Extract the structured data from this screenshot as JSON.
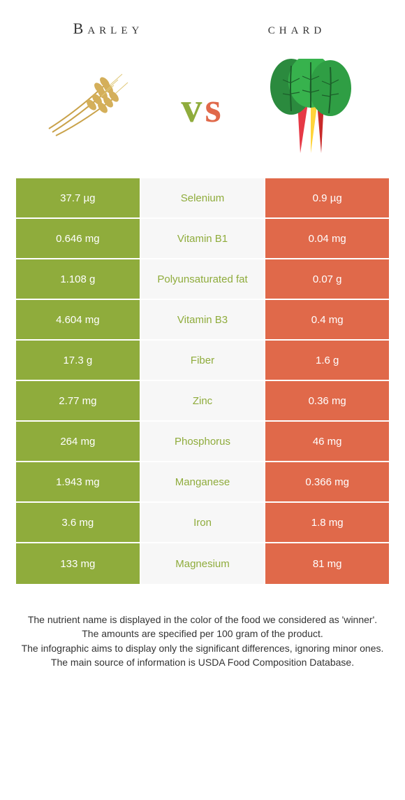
{
  "left_food": "Barley",
  "right_food": "chard",
  "vs_left_color": "#8fac3c",
  "vs_right_color": "#e0694a",
  "colors": {
    "left": "#8fac3c",
    "right": "#e0694a",
    "middle_bg": "#f7f7f7"
  },
  "rows": [
    {
      "left": "37.7 µg",
      "label": "Selenium",
      "right": "0.9 µg",
      "winner": "left"
    },
    {
      "left": "0.646 mg",
      "label": "Vitamin B1",
      "right": "0.04 mg",
      "winner": "left"
    },
    {
      "left": "1.108 g",
      "label": "Polyunsaturated fat",
      "right": "0.07 g",
      "winner": "left"
    },
    {
      "left": "4.604 mg",
      "label": "Vitamin B3",
      "right": "0.4 mg",
      "winner": "left"
    },
    {
      "left": "17.3 g",
      "label": "Fiber",
      "right": "1.6 g",
      "winner": "left"
    },
    {
      "left": "2.77 mg",
      "label": "Zinc",
      "right": "0.36 mg",
      "winner": "left"
    },
    {
      "left": "264 mg",
      "label": "Phosphorus",
      "right": "46 mg",
      "winner": "left"
    },
    {
      "left": "1.943 mg",
      "label": "Manganese",
      "right": "0.366 mg",
      "winner": "left"
    },
    {
      "left": "3.6 mg",
      "label": "Iron",
      "right": "1.8 mg",
      "winner": "left"
    },
    {
      "left": "133 mg",
      "label": "Magnesium",
      "right": "81 mg",
      "winner": "left"
    }
  ],
  "footnotes": [
    "The nutrient name is displayed in the color of the food we considered as 'winner'.",
    "The amounts are specified per 100 gram of the product.",
    "The infographic aims to display only the significant differences, ignoring minor ones.",
    "The main source of information is USDA Food Composition Database."
  ]
}
